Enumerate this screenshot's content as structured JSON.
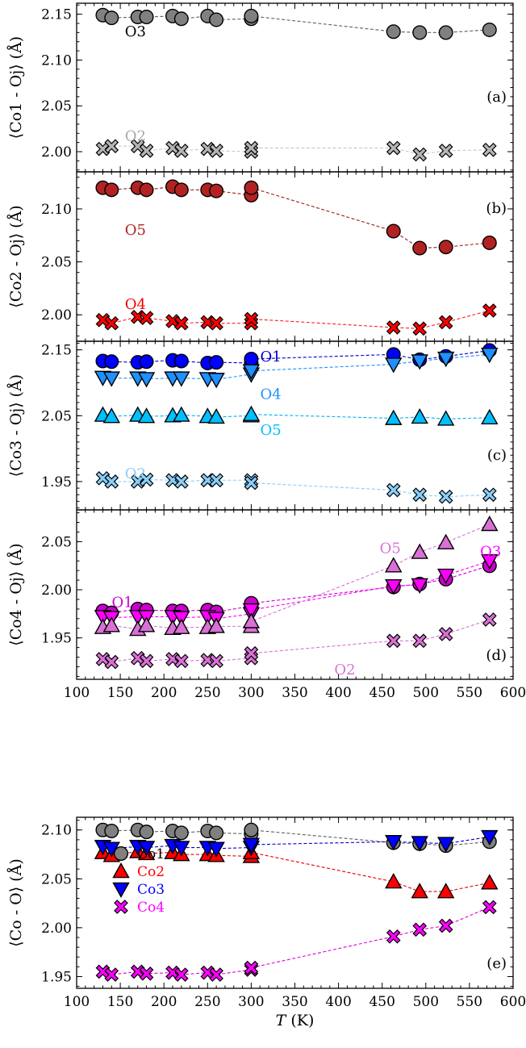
{
  "chart_data": [
    {
      "type": "scatter",
      "panel_label": "(a)",
      "ylabel": "⟨Co1 - Oj⟩ (Å)",
      "xlim": [
        100,
        600
      ],
      "ylim": [
        1.978,
        2.162
      ],
      "yticks": [
        2.0,
        2.05,
        2.1,
        2.15
      ],
      "ytick_labels": [
        "2.00",
        "2.05",
        "2.10",
        "2.15"
      ],
      "annotations": [
        {
          "text": "O3",
          "color": "#000000",
          "x": 170,
          "y": 2.131
        },
        {
          "text": "O2",
          "color": "#a8a8a8",
          "x": 170,
          "y": 2.017
        }
      ],
      "series": [
        {
          "label": "O3",
          "marker": "circle",
          "color": "#808080",
          "line_color": "#606060",
          "x": [
            130,
            140,
            170,
            180,
            210,
            220,
            250,
            260,
            300,
            300,
            463,
            493,
            523,
            573
          ],
          "y": [
            2.149,
            2.146,
            2.147,
            2.147,
            2.148,
            2.145,
            2.148,
            2.144,
            2.145,
            2.148,
            2.131,
            2.13,
            2.13,
            2.133
          ]
        },
        {
          "label": "O2",
          "marker": "cross",
          "color": "#b4b4b4",
          "line_color": "#c8c8c8",
          "x": [
            130,
            140,
            170,
            180,
            210,
            220,
            250,
            260,
            300,
            300,
            463,
            493,
            523,
            573
          ],
          "y": [
            2.003,
            2.006,
            2.006,
            2.001,
            2.004,
            2.001,
            2.003,
            2.001,
            2.0,
            2.004,
            2.004,
            1.997,
            2.001,
            2.002
          ]
        }
      ]
    },
    {
      "type": "scatter",
      "panel_label": "(b)",
      "ylabel": "⟨Co2 - Oj⟩ (Å)",
      "xlim": [
        100,
        600
      ],
      "ylim": [
        1.975,
        2.135
      ],
      "yticks": [
        2.0,
        2.05,
        2.1
      ],
      "ytick_labels": [
        "2.00",
        "2.05",
        "2.10"
      ],
      "annotations": [
        {
          "text": "O5",
          "color": "#b22222",
          "x": 170,
          "y": 2.08
        },
        {
          "text": "O4",
          "color": "#ee0000",
          "x": 170,
          "y": 2.01
        }
      ],
      "series": [
        {
          "label": "O5",
          "marker": "circle",
          "color": "#b22222",
          "line_color": "#a01a1a",
          "x": [
            130,
            140,
            170,
            180,
            210,
            220,
            250,
            260,
            300,
            300,
            463,
            493,
            523,
            573
          ],
          "y": [
            2.12,
            2.118,
            2.12,
            2.118,
            2.121,
            2.118,
            2.118,
            2.117,
            2.113,
            2.12,
            2.079,
            2.063,
            2.064,
            2.068
          ]
        },
        {
          "label": "O4",
          "marker": "cross",
          "color": "#ff0000",
          "line_color": "#ff2020",
          "x": [
            130,
            140,
            170,
            180,
            210,
            220,
            250,
            260,
            300,
            300,
            463,
            493,
            523,
            573
          ],
          "y": [
            1.995,
            1.992,
            1.998,
            1.997,
            1.994,
            1.992,
            1.993,
            1.992,
            1.992,
            1.996,
            1.988,
            1.987,
            1.993,
            2.004
          ]
        }
      ]
    },
    {
      "type": "scatter",
      "panel_label": "(c)",
      "ylabel": "⟨Co3 - Oj⟩ (Å)",
      "xlim": [
        100,
        600
      ],
      "ylim": [
        1.907,
        2.163
      ],
      "yticks": [
        1.95,
        2.05,
        2.15
      ],
      "ytick_labels": [
        "1.95",
        "2.05",
        "2.15"
      ],
      "annotations": [
        {
          "text": "O1",
          "color": "#0000cc",
          "x": 325,
          "y": 2.14
        },
        {
          "text": "O4",
          "color": "#1e90ff",
          "x": 325,
          "y": 2.083
        },
        {
          "text": "O5",
          "color": "#00bfff",
          "x": 325,
          "y": 2.028
        },
        {
          "text": "O2",
          "color": "#87cefa",
          "x": 170,
          "y": 1.962
        }
      ],
      "series": [
        {
          "label": "O1",
          "marker": "circle",
          "color": "#0000ff",
          "line_color": "#0000cc",
          "x": [
            130,
            140,
            170,
            180,
            210,
            220,
            250,
            260,
            300,
            300,
            463,
            493,
            523,
            573
          ],
          "y": [
            2.133,
            2.132,
            2.131,
            2.132,
            2.134,
            2.133,
            2.13,
            2.131,
            2.13,
            2.136,
            2.143,
            2.135,
            2.14,
            2.149
          ]
        },
        {
          "label": "O4",
          "marker": "triangle-down",
          "color": "#1e90ff",
          "line_color": "#1e90ff",
          "x": [
            130,
            140,
            170,
            180,
            210,
            220,
            250,
            260,
            300,
            300,
            463,
            493,
            523,
            573
          ],
          "y": [
            2.108,
            2.107,
            2.107,
            2.106,
            2.107,
            2.107,
            2.106,
            2.105,
            2.113,
            2.118,
            2.128,
            2.133,
            2.137,
            2.143
          ]
        },
        {
          "label": "O5",
          "marker": "triangle-up",
          "color": "#00bfff",
          "line_color": "#00b0f0",
          "x": [
            130,
            140,
            170,
            180,
            210,
            220,
            250,
            260,
            300,
            300,
            463,
            493,
            523,
            573
          ],
          "y": [
            2.051,
            2.049,
            2.051,
            2.049,
            2.05,
            2.051,
            2.049,
            2.048,
            2.05,
            2.052,
            2.046,
            2.048,
            2.045,
            2.047
          ]
        },
        {
          "label": "O2",
          "marker": "cross",
          "color": "#87cefa",
          "line_color": "#87cefa",
          "x": [
            130,
            140,
            170,
            180,
            210,
            220,
            250,
            260,
            300,
            300,
            463,
            493,
            523,
            573
          ],
          "y": [
            1.955,
            1.95,
            1.95,
            1.953,
            1.952,
            1.95,
            1.952,
            1.952,
            1.952,
            1.948,
            1.937,
            1.93,
            1.927,
            1.93
          ]
        }
      ]
    },
    {
      "type": "scatter",
      "panel_label": "(d)",
      "ylabel": "⟨Co4 - Oj⟩ (Å)",
      "xlim": [
        100,
        600
      ],
      "ylim": [
        1.907,
        2.083
      ],
      "yticks": [
        1.95,
        2.0,
        2.05
      ],
      "ytick_labels": [
        "1.95",
        "2.00",
        "2.05"
      ],
      "xticks": [
        100,
        150,
        200,
        250,
        300,
        350,
        400,
        450,
        500,
        550,
        600
      ],
      "annotations": [
        {
          "text": "O1",
          "color": "#cc00cc",
          "x": 155,
          "y": 1.987
        },
        {
          "text": "O5",
          "color": "#da70d6",
          "x": 462,
          "y": 2.043
        },
        {
          "text": "O3",
          "color": "#ff00ff",
          "x": 577,
          "y": 2.04
        },
        {
          "text": "O2",
          "color": "#da70d6",
          "x": 410,
          "y": 1.917
        }
      ],
      "series": [
        {
          "label": "O1",
          "marker": "circle",
          "color": "#cc00cc",
          "line_color": "#cc00cc",
          "x": [
            130,
            140,
            170,
            180,
            210,
            220,
            250,
            260,
            300,
            300,
            463,
            493,
            523,
            573
          ],
          "y": [
            1.978,
            1.976,
            1.98,
            1.979,
            1.978,
            1.978,
            1.979,
            1.977,
            1.983,
            1.986,
            2.003,
            2.006,
            2.011,
            2.025
          ]
        },
        {
          "label": "O3",
          "marker": "triangle-down",
          "color": "#ff00ff",
          "line_color": "#ff00ff",
          "x": [
            130,
            140,
            170,
            180,
            210,
            220,
            250,
            260,
            300,
            300,
            463,
            493,
            523,
            573
          ],
          "y": [
            1.972,
            1.971,
            1.972,
            1.972,
            1.972,
            1.971,
            1.972,
            1.97,
            1.975,
            1.979,
            2.004,
            2.005,
            2.015,
            2.03
          ]
        },
        {
          "label": "O5",
          "marker": "triangle-up",
          "color": "#da70d6",
          "line_color": "#da70d6",
          "x": [
            130,
            140,
            170,
            180,
            210,
            220,
            250,
            260,
            300,
            300,
            463,
            493,
            523,
            573
          ],
          "y": [
            1.961,
            1.963,
            1.959,
            1.963,
            1.96,
            1.961,
            1.961,
            1.962,
            1.962,
            1.967,
            2.025,
            2.039,
            2.049,
            2.068
          ]
        },
        {
          "label": "O2",
          "marker": "cross",
          "color": "#da70d6",
          "line_color": "#da70d6",
          "x": [
            130,
            140,
            170,
            180,
            210,
            220,
            250,
            260,
            300,
            300,
            463,
            493,
            523,
            573
          ],
          "y": [
            1.928,
            1.925,
            1.929,
            1.926,
            1.928,
            1.926,
            1.927,
            1.926,
            1.929,
            1.934,
            1.947,
            1.947,
            1.954,
            1.969
          ]
        }
      ]
    },
    {
      "type": "scatter",
      "panel_label": "(e)",
      "ylabel": "⟨Co - O⟩ (Å)",
      "xlabel": "T (K)",
      "xlim": [
        100,
        600
      ],
      "ylim": [
        1.938,
        2.113
      ],
      "yticks": [
        1.95,
        2.0,
        2.05,
        2.1
      ],
      "ytick_labels": [
        "1.95",
        "2.00",
        "2.05",
        "2.10"
      ],
      "xticks": [
        100,
        150,
        200,
        250,
        300,
        350,
        400,
        450,
        500,
        550,
        600
      ],
      "legend": "center-left",
      "series": [
        {
          "label": "Co1",
          "marker": "circle",
          "color": "#808080",
          "line_color": "#606060",
          "x": [
            130,
            140,
            170,
            180,
            210,
            220,
            250,
            260,
            300,
            300,
            463,
            493,
            523,
            573
          ],
          "y": [
            2.1,
            2.099,
            2.1,
            2.098,
            2.099,
            2.097,
            2.099,
            2.097,
            2.096,
            2.1,
            2.087,
            2.086,
            2.084,
            2.088
          ]
        },
        {
          "label": "Co2",
          "marker": "triangle-up",
          "color": "#ff0000",
          "line_color": "#ee0000",
          "x": [
            130,
            140,
            170,
            180,
            210,
            220,
            250,
            260,
            300,
            300,
            463,
            493,
            523,
            573
          ],
          "y": [
            2.077,
            2.074,
            2.078,
            2.076,
            2.077,
            2.075,
            2.075,
            2.074,
            2.073,
            2.077,
            2.047,
            2.037,
            2.037,
            2.046
          ]
        },
        {
          "label": "Co3",
          "marker": "triangle-down",
          "color": "#0000ff",
          "line_color": "#0000cc",
          "x": [
            130,
            140,
            170,
            180,
            210,
            220,
            250,
            260,
            300,
            300,
            463,
            493,
            523,
            573
          ],
          "y": [
            2.083,
            2.081,
            2.083,
            2.082,
            2.084,
            2.082,
            2.082,
            2.081,
            2.082,
            2.085,
            2.088,
            2.087,
            2.086,
            2.093
          ]
        },
        {
          "label": "Co4",
          "marker": "cross",
          "color": "#ff00ff",
          "line_color": "#e000e0",
          "x": [
            130,
            140,
            170,
            180,
            210,
            220,
            250,
            260,
            300,
            300,
            463,
            493,
            523,
            573
          ],
          "y": [
            1.955,
            1.952,
            1.955,
            1.953,
            1.954,
            1.952,
            1.954,
            1.952,
            1.957,
            1.959,
            1.991,
            1.998,
            2.002,
            2.021
          ]
        }
      ]
    }
  ]
}
